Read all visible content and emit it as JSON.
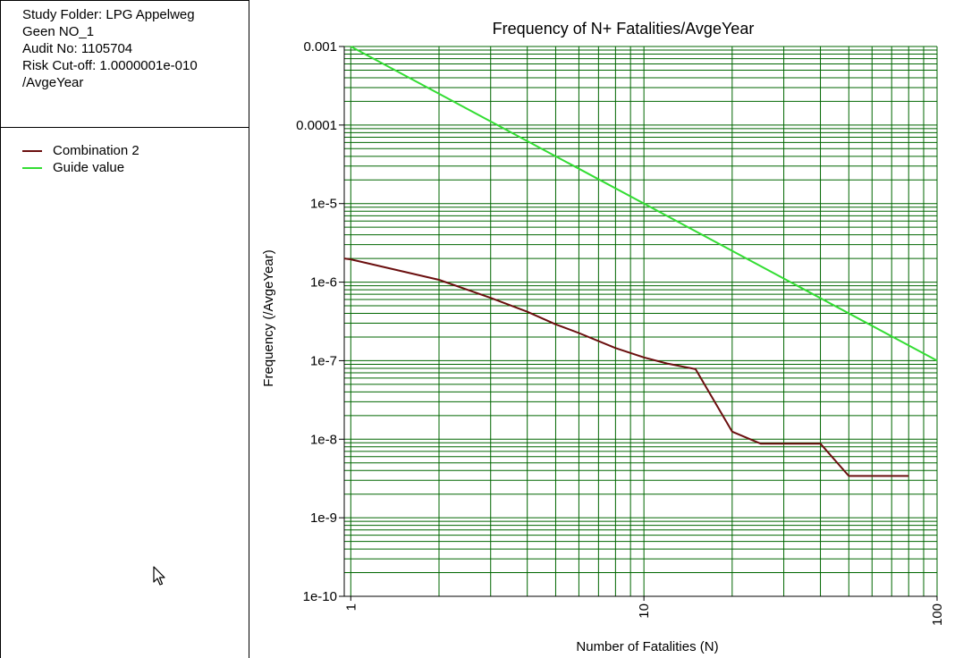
{
  "info": {
    "study_folder": "Study Folder: LPG Appelweg",
    "case_name": "Geen NO_1",
    "audit": "Audit No: 1105704",
    "cutoff": "Risk Cut-off: 1.0000001e-010",
    "cutoff_unit": "/AvgeYear"
  },
  "legend": [
    {
      "label": "Combination 2",
      "color": "#6b0f0f"
    },
    {
      "label": "Guide value",
      "color": "#33dd33"
    }
  ],
  "cursor_icon": "mouse-pointer-icon",
  "chart_data": {
    "type": "line",
    "title": "Frequency of N+ Fatalities/AvgeYear",
    "xlabel": "Number of Fatalities (N)",
    "ylabel": "Frequency (/AvgeYear)",
    "x_scale": "log",
    "y_scale": "log",
    "xlim": [
      0.95,
      100
    ],
    "ylim": [
      1e-10,
      0.001
    ],
    "x_tick_labels": [
      {
        "value": 1,
        "label": "1"
      },
      {
        "value": 10,
        "label": "10"
      },
      {
        "value": 100,
        "label": "100"
      }
    ],
    "y_tick_labels": [
      {
        "value": 0.001,
        "label": "0.001"
      },
      {
        "value": 0.0001,
        "label": "0.0001"
      },
      {
        "value": 1e-05,
        "label": "1e-5"
      },
      {
        "value": 1e-06,
        "label": "1e-6"
      },
      {
        "value": 1e-07,
        "label": "1e-7"
      },
      {
        "value": 1e-08,
        "label": "1e-8"
      },
      {
        "value": 1e-09,
        "label": "1e-9"
      },
      {
        "value": 1e-10,
        "label": "1e-10"
      }
    ],
    "grid": true,
    "grid_color": "#006600",
    "series": [
      {
        "name": "Combination 2",
        "color": "#6b0f0f",
        "x": [
          0.95,
          1,
          2,
          3,
          4,
          5,
          6,
          8,
          10,
          12,
          15,
          20,
          25,
          30,
          40,
          50,
          80
        ],
        "y": [
          2e-06,
          1.95e-06,
          1.07e-06,
          6.3e-07,
          4.2e-07,
          2.9e-07,
          2.25e-07,
          1.45e-07,
          1.1e-07,
          9.2e-08,
          7.8e-08,
          1.25e-08,
          8.8e-09,
          8.8e-09,
          8.8e-09,
          3.4e-09,
          3.4e-09
        ]
      },
      {
        "name": "Guide value",
        "color": "#33dd33",
        "x": [
          1,
          100
        ],
        "y": [
          0.001,
          1e-07
        ]
      }
    ]
  }
}
